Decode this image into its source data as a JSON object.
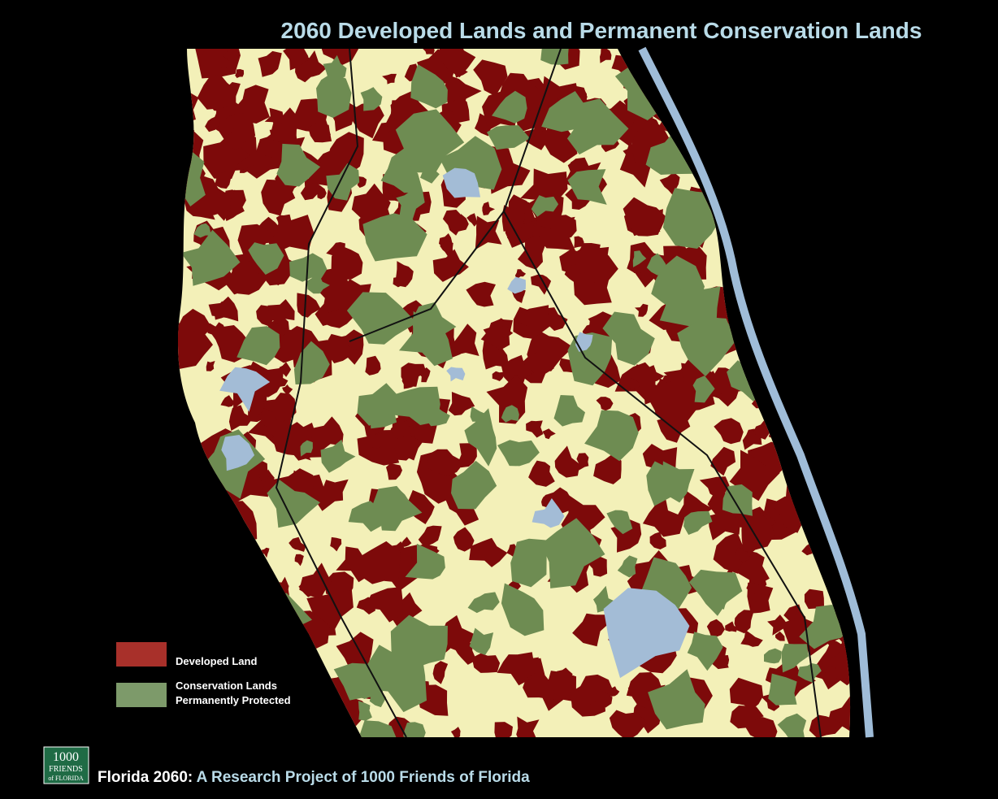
{
  "header": {
    "title": "2060 Developed Lands and Permanent Conservation Lands"
  },
  "legend": [
    {
      "lines": [
        "Developed Land"
      ]
    },
    {
      "lines": [
        "Conservation Lands",
        "Permanently Protected"
      ]
    }
  ],
  "logo": {
    "lines": [
      "1000",
      "FRIENDS",
      "of FLORIDA"
    ]
  },
  "footer": {
    "lead": "Florida 2060:",
    "rest": "A Research Project of 1000 Friends of Florida"
  }
}
